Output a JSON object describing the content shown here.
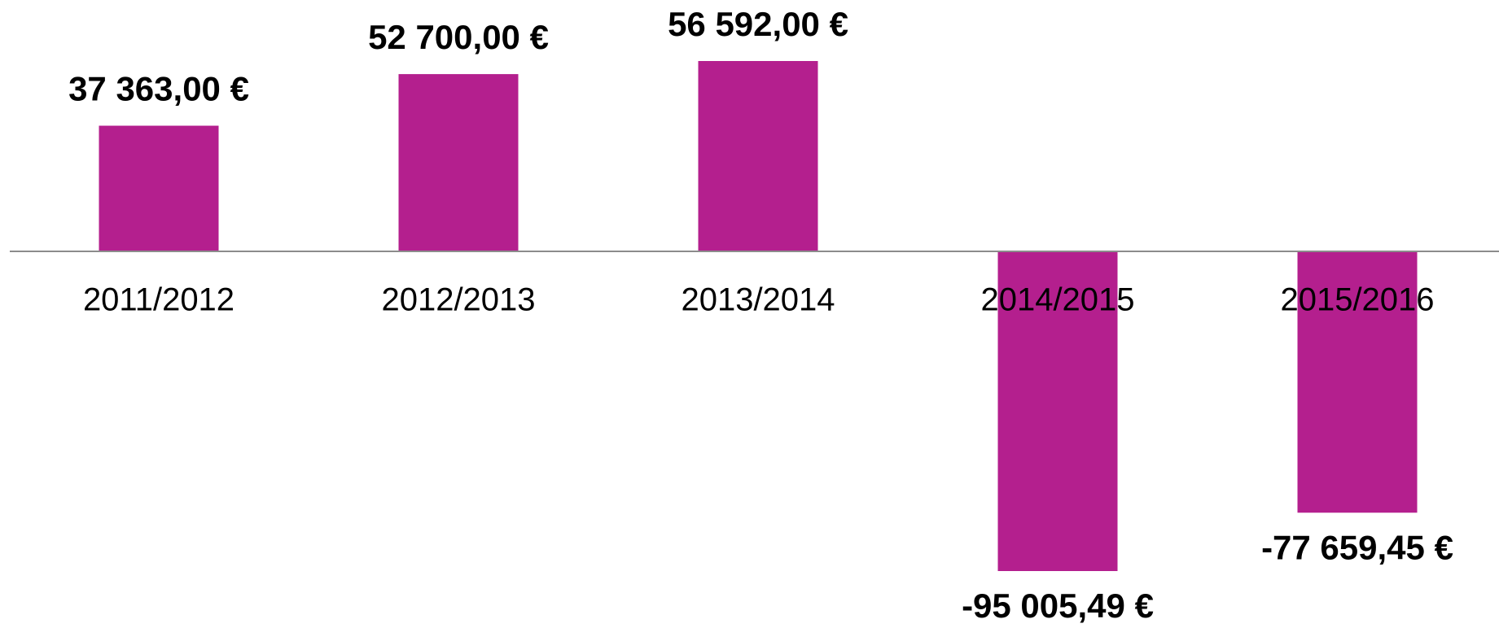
{
  "chart_data": {
    "type": "bar",
    "categories": [
      "2011/2012",
      "2012/2013",
      "2013/2014",
      "2014/2015",
      "2015/2016"
    ],
    "values": [
      37363,
      52700,
      56592,
      -95005.49,
      -77659.45
    ],
    "value_labels": [
      "37 363,00 €",
      "52 700,00 €",
      "56 592,00 €",
      "-95 005,49 €",
      "-77 659,45 €"
    ],
    "color": "#b41f8e"
  }
}
